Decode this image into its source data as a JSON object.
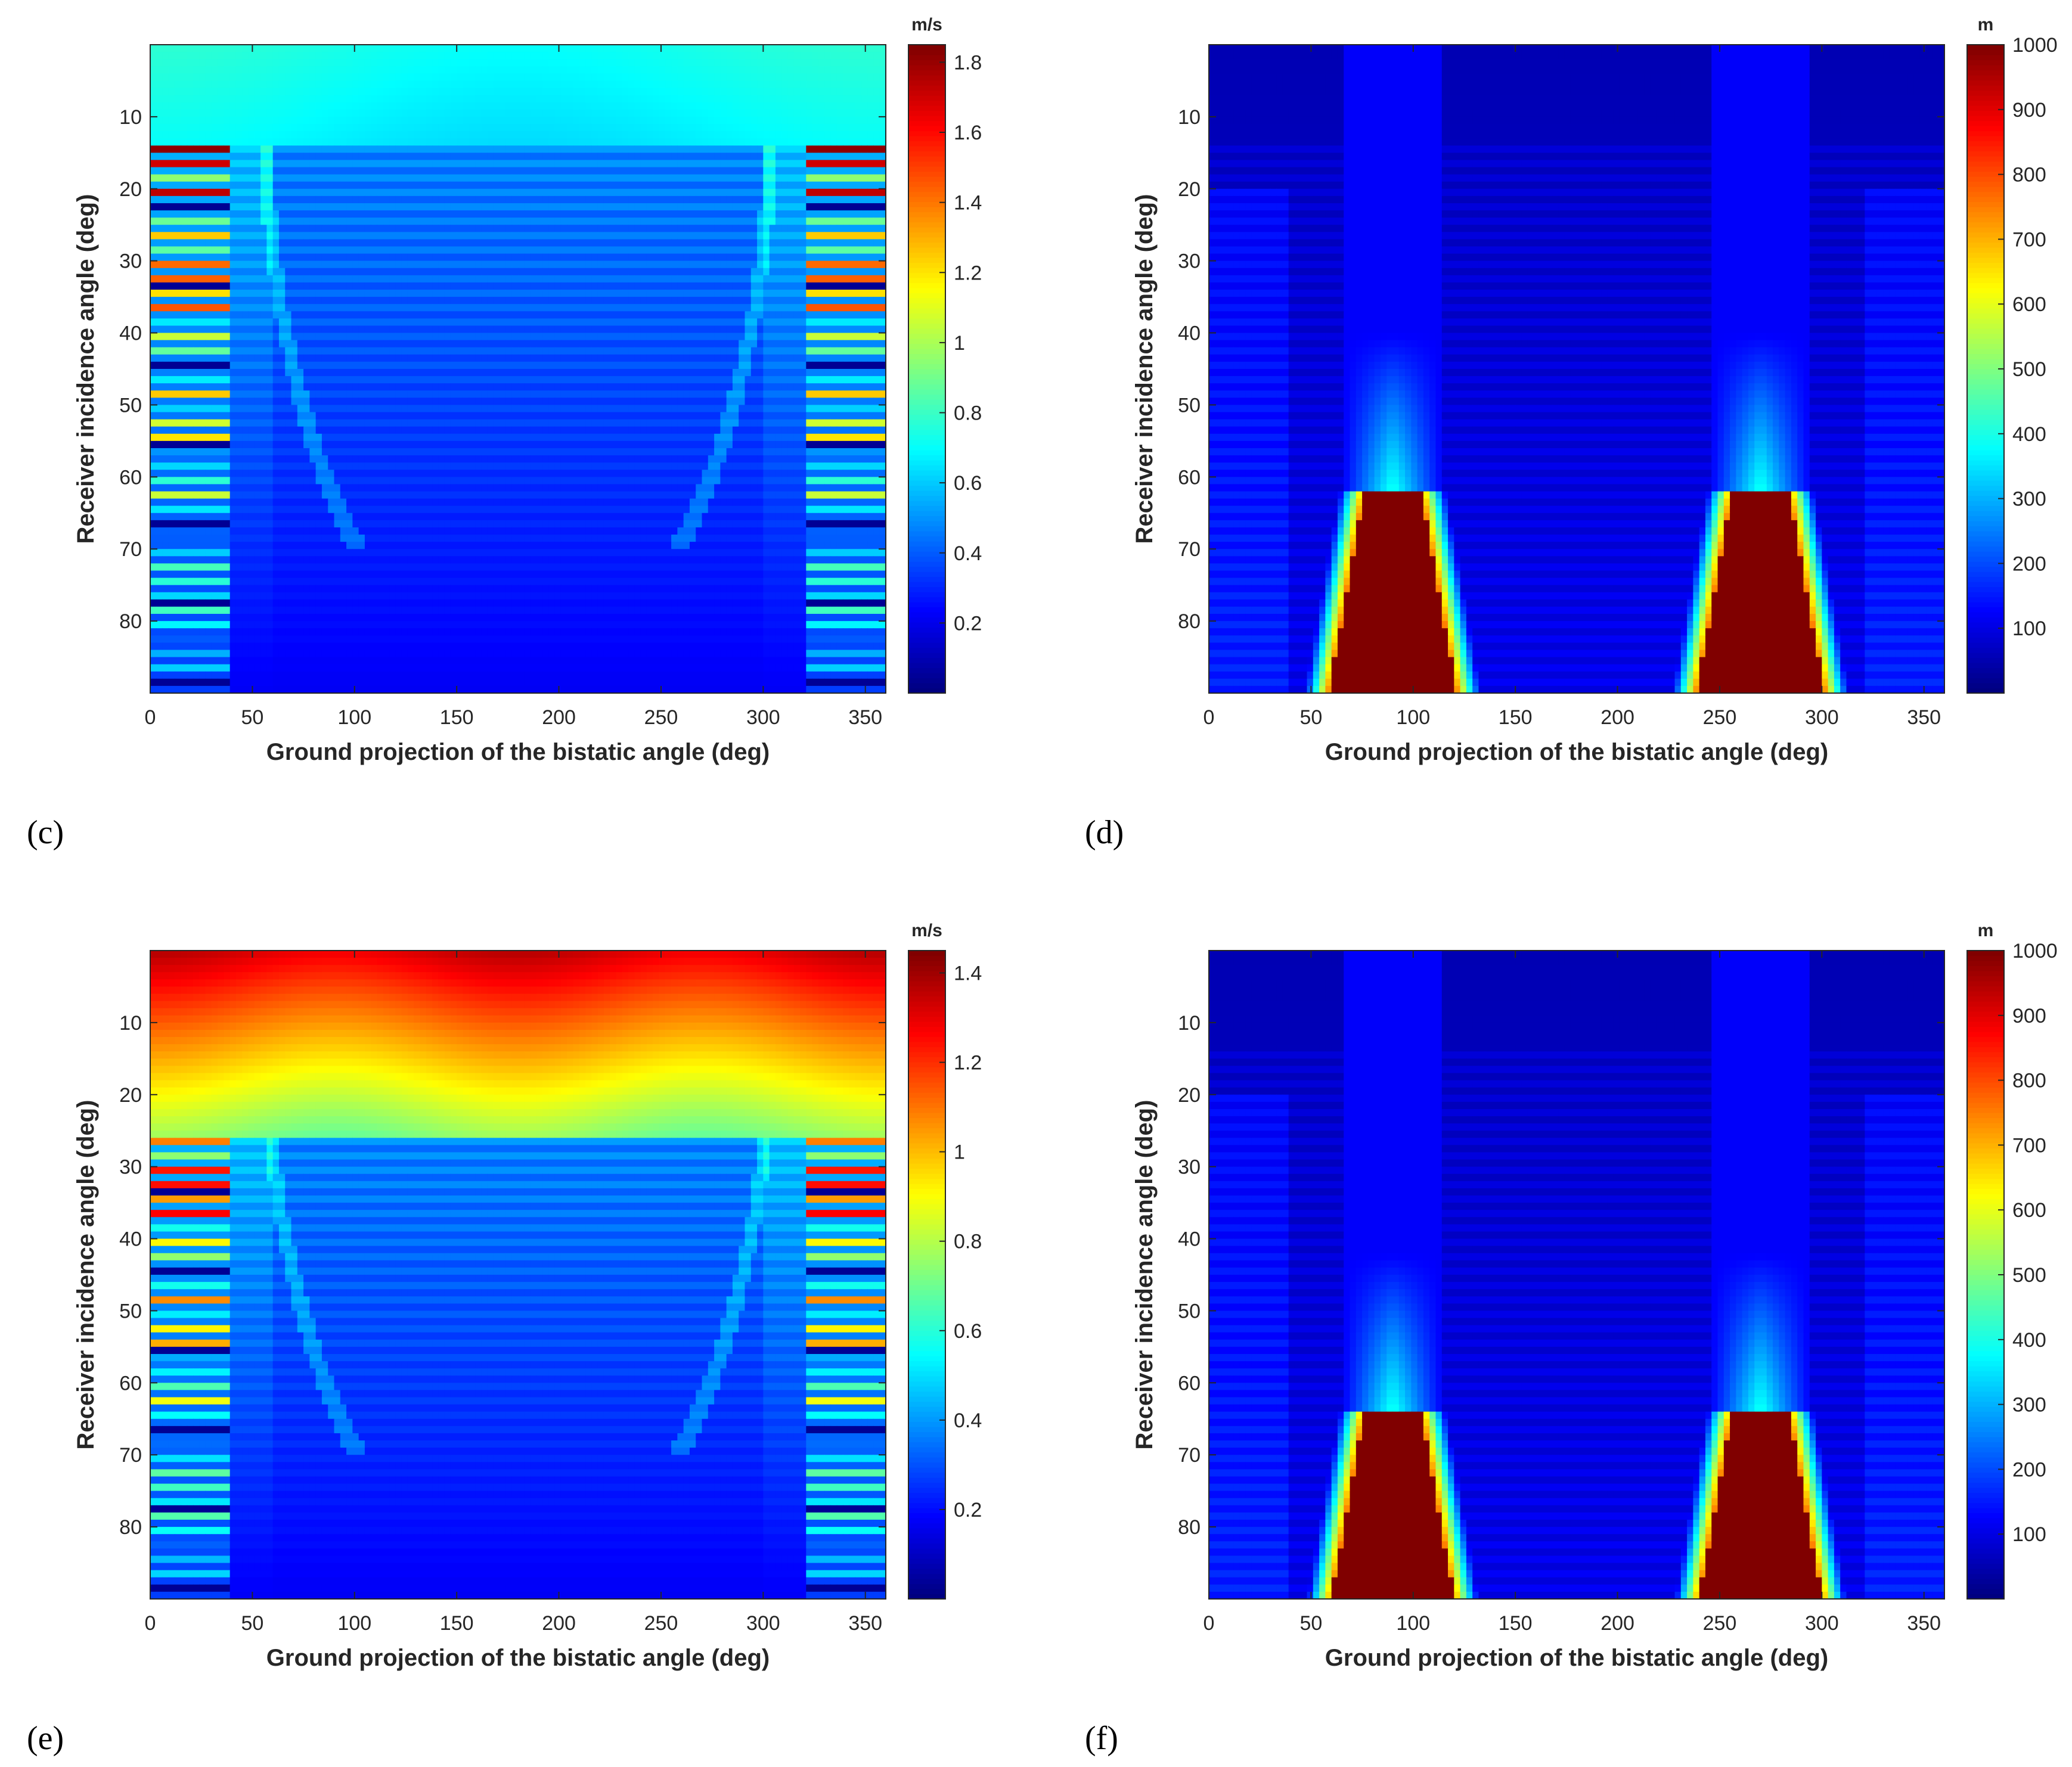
{
  "chart_data": [
    {
      "id": "c",
      "panel_label": "(c)",
      "type": "heatmap",
      "xlabel": "Ground projection of the bistatic angle (deg)",
      "ylabel": "Receiver incidence angle (deg)",
      "xlim": [
        0,
        360
      ],
      "ylim": [
        0,
        90
      ],
      "xticks": [
        "0",
        "50",
        "100",
        "150",
        "200",
        "250",
        "300",
        "350"
      ],
      "yticks": [
        "10",
        "20",
        "30",
        "40",
        "50",
        "60",
        "70",
        "80"
      ],
      "colorbar": {
        "unit": "m/s",
        "min": 0.0,
        "max": 1.85,
        "ticks": [
          "0.2",
          "0.4",
          "0.6",
          "0.8",
          "1",
          "1.2",
          "1.4",
          "1.6",
          "1.8"
        ]
      },
      "pattern": "velocity",
      "band_start": 14,
      "base": 0.05
    },
    {
      "id": "d",
      "panel_label": "(d)",
      "type": "heatmap",
      "xlabel": "Ground projection of the bistatic angle (deg)",
      "ylabel": "Receiver incidence angle (deg)",
      "xlim": [
        0,
        360
      ],
      "ylim": [
        0,
        90
      ],
      "xticks": [
        "0",
        "50",
        "100",
        "150",
        "200",
        "250",
        "300",
        "350"
      ],
      "yticks": [
        "10",
        "20",
        "30",
        "40",
        "50",
        "60",
        "70",
        "80"
      ],
      "colorbar": {
        "unit": "m",
        "min": 0,
        "max": 1000,
        "ticks": [
          "100",
          "200",
          "300",
          "400",
          "500",
          "600",
          "700",
          "800",
          "900",
          "1000"
        ]
      },
      "pattern": "distance",
      "lobe_top": 62
    },
    {
      "id": "e",
      "panel_label": "(e)",
      "type": "heatmap",
      "xlabel": "Ground projection of the bistatic angle (deg)",
      "ylabel": "Receiver incidence angle (deg)",
      "xlim": [
        0,
        360
      ],
      "ylim": [
        0,
        90
      ],
      "xticks": [
        "0",
        "50",
        "100",
        "150",
        "200",
        "250",
        "300",
        "350"
      ],
      "yticks": [
        "10",
        "20",
        "30",
        "40",
        "50",
        "60",
        "70",
        "80"
      ],
      "colorbar": {
        "unit": "m/s",
        "min": 0.0,
        "max": 1.45,
        "ticks": [
          "0.2",
          "0.4",
          "0.6",
          "0.8",
          "1",
          "1.2",
          "1.4"
        ]
      },
      "pattern": "velocity",
      "band_start": 26,
      "base": 0.05
    },
    {
      "id": "f",
      "panel_label": "(f)",
      "type": "heatmap",
      "xlabel": "Ground projection of the bistatic angle (deg)",
      "ylabel": "Receiver incidence angle (deg)",
      "xlim": [
        0,
        360
      ],
      "ylim": [
        0,
        90
      ],
      "xticks": [
        "0",
        "50",
        "100",
        "150",
        "200",
        "250",
        "300",
        "350"
      ],
      "yticks": [
        "10",
        "20",
        "30",
        "40",
        "50",
        "60",
        "70",
        "80"
      ],
      "colorbar": {
        "unit": "m",
        "min": 0,
        "max": 1000,
        "ticks": [
          "100",
          "200",
          "300",
          "400",
          "500",
          "600",
          "700",
          "800",
          "900",
          "1000"
        ]
      },
      "pattern": "distance",
      "lobe_top": 64
    }
  ]
}
